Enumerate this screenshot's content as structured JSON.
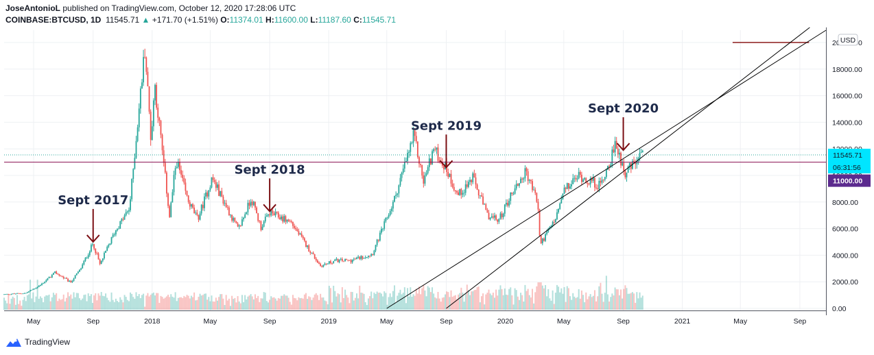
{
  "header": {
    "author": "JoseAntonioL",
    "published_text": "published on TradingView.com, October 12, 2020 17:28:06 UTC",
    "symbol": "COINBASE:BTCUSD, 1D",
    "last": "11545.71",
    "change_arrow": "▲",
    "change": "+171.70 (+1.51%)",
    "open_label": "O:",
    "open": "11374.01",
    "high_label": "H:",
    "high": "11600.00",
    "low_label": "L:",
    "low": "11187.60",
    "close_label": "C:",
    "close": "11545.71"
  },
  "footer": {
    "brand": "TradingView",
    "logo_icon": "tradingview-logo-icon"
  },
  "colors": {
    "up": "#26a69a",
    "down": "#ef5350",
    "annotation": "#7b0f14",
    "hline": "#880e4f",
    "text": "#131722",
    "price_badge": "#00e5ff",
    "level_badge": "#5b2a8e"
  },
  "chart_data": {
    "type": "candlestick",
    "x_axis": {
      "tick_labels": [
        "May",
        "Sep",
        "2018",
        "May",
        "Sep",
        "2019",
        "May",
        "Sep",
        "2020",
        "May",
        "Sep",
        "2021",
        "May",
        "Sep"
      ]
    },
    "y_axis": {
      "tick_labels": [
        "0.00",
        "2000.00",
        "4000.00",
        "6000.00",
        "8000.00",
        "10000.00",
        "12000.00",
        "14000.00",
        "16000.00",
        "18000.00",
        "20000.00"
      ],
      "range": [
        0,
        20500
      ],
      "currency": "USD",
      "grid": true
    },
    "close_series": [
      {
        "date": "2017-03-01",
        "close": 1050
      },
      {
        "date": "2017-04-15",
        "close": 1150
      },
      {
        "date": "2017-05-15",
        "close": 1750
      },
      {
        "date": "2017-06-15",
        "close": 2700
      },
      {
        "date": "2017-07-16",
        "close": 1950
      },
      {
        "date": "2017-08-05",
        "close": 2900
      },
      {
        "date": "2017-09-01",
        "close": 4900
      },
      {
        "date": "2017-09-15",
        "close": 3300
      },
      {
        "date": "2017-10-15",
        "close": 5700
      },
      {
        "date": "2017-11-15",
        "close": 7500
      },
      {
        "date": "2017-12-17",
        "close": 19600
      },
      {
        "date": "2017-12-30",
        "close": 12500
      },
      {
        "date": "2018-01-06",
        "close": 17000
      },
      {
        "date": "2018-02-06",
        "close": 6900
      },
      {
        "date": "2018-02-20",
        "close": 11200
      },
      {
        "date": "2018-03-15",
        "close": 8200
      },
      {
        "date": "2018-04-05",
        "close": 6700
      },
      {
        "date": "2018-05-05",
        "close": 9800
      },
      {
        "date": "2018-06-28",
        "close": 5900
      },
      {
        "date": "2018-07-25",
        "close": 8300
      },
      {
        "date": "2018-08-14",
        "close": 6100
      },
      {
        "date": "2018-09-01",
        "close": 7200
      },
      {
        "date": "2018-10-15",
        "close": 6500
      },
      {
        "date": "2018-11-20",
        "close": 4500
      },
      {
        "date": "2018-12-15",
        "close": 3200
      },
      {
        "date": "2019-01-15",
        "close": 3600
      },
      {
        "date": "2019-02-15",
        "close": 3600
      },
      {
        "date": "2019-04-01",
        "close": 4100
      },
      {
        "date": "2019-05-15",
        "close": 8000
      },
      {
        "date": "2019-06-26",
        "close": 13000
      },
      {
        "date": "2019-07-16",
        "close": 9500
      },
      {
        "date": "2019-08-06",
        "close": 12000
      },
      {
        "date": "2019-09-01",
        "close": 10500
      },
      {
        "date": "2019-09-25",
        "close": 8500
      },
      {
        "date": "2019-10-26",
        "close": 9800
      },
      {
        "date": "2019-11-25",
        "close": 7000
      },
      {
        "date": "2019-12-18",
        "close": 6600
      },
      {
        "date": "2020-01-15",
        "close": 8700
      },
      {
        "date": "2020-02-13",
        "close": 10300
      },
      {
        "date": "2020-03-08",
        "close": 8000
      },
      {
        "date": "2020-03-13",
        "close": 4800
      },
      {
        "date": "2020-04-15",
        "close": 6800
      },
      {
        "date": "2020-05-01",
        "close": 8800
      },
      {
        "date": "2020-06-01",
        "close": 10000
      },
      {
        "date": "2020-07-15",
        "close": 9200
      },
      {
        "date": "2020-08-17",
        "close": 12300
      },
      {
        "date": "2020-09-05",
        "close": 10200
      },
      {
        "date": "2020-10-12",
        "close": 11545.71
      }
    ],
    "annotations": [
      {
        "text": "Sept 2017",
        "date": "2017-09-01",
        "price": 4900
      },
      {
        "text": "Sept 2018",
        "date": "2018-09-01",
        "price": 7200
      },
      {
        "text": "Sept 2019",
        "date": "2019-09-01",
        "price": 10500
      },
      {
        "text": "Sept 2020",
        "date": "2020-09-01",
        "price": 11800
      }
    ],
    "trend_channel": [
      {
        "from": {
          "date": "2019-05-01",
          "price": 0
        },
        "to": {
          "date": "2021-09-15",
          "price": 20000
        }
      },
      {
        "from": {
          "date": "2019-09-01",
          "price": 0
        },
        "to": {
          "date": "2021-10-01",
          "price": 21400
        }
      }
    ],
    "horizontal_lines": [
      {
        "price": 11000,
        "label": "11000.00"
      },
      {
        "price": 20000,
        "from_date": "2021-04-15",
        "to_date": "2021-09-20"
      }
    ],
    "price_badge": {
      "price": 11545.71,
      "label": "11545.71",
      "countdown": "06:31:56"
    },
    "volume": {
      "shown": true,
      "max": 2000
    }
  }
}
